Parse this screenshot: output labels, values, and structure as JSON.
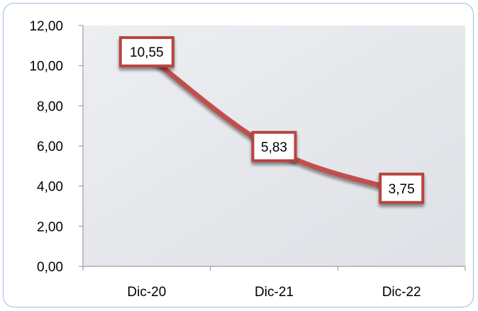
{
  "chart_data": {
    "type": "line",
    "categories": [
      "Dic-20",
      "Dic-21",
      "Dic-22"
    ],
    "series": [
      {
        "values": [
          10.55,
          5.83,
          3.75
        ]
      }
    ],
    "data_labels": [
      "10,55",
      "5,83",
      "3,75"
    ],
    "y_ticks": [
      "0,00",
      "2,00",
      "4,00",
      "6,00",
      "8,00",
      "10,00",
      "12,00"
    ],
    "ylim": [
      0,
      12
    ],
    "title": "",
    "xlabel": "",
    "ylabel": "",
    "grid": false,
    "legend": "none",
    "colors": {
      "line": "#c0504d",
      "plot_background": "#e8e9ee",
      "label_border": "#b8453f",
      "frame_border": "#9dbbd6"
    }
  }
}
